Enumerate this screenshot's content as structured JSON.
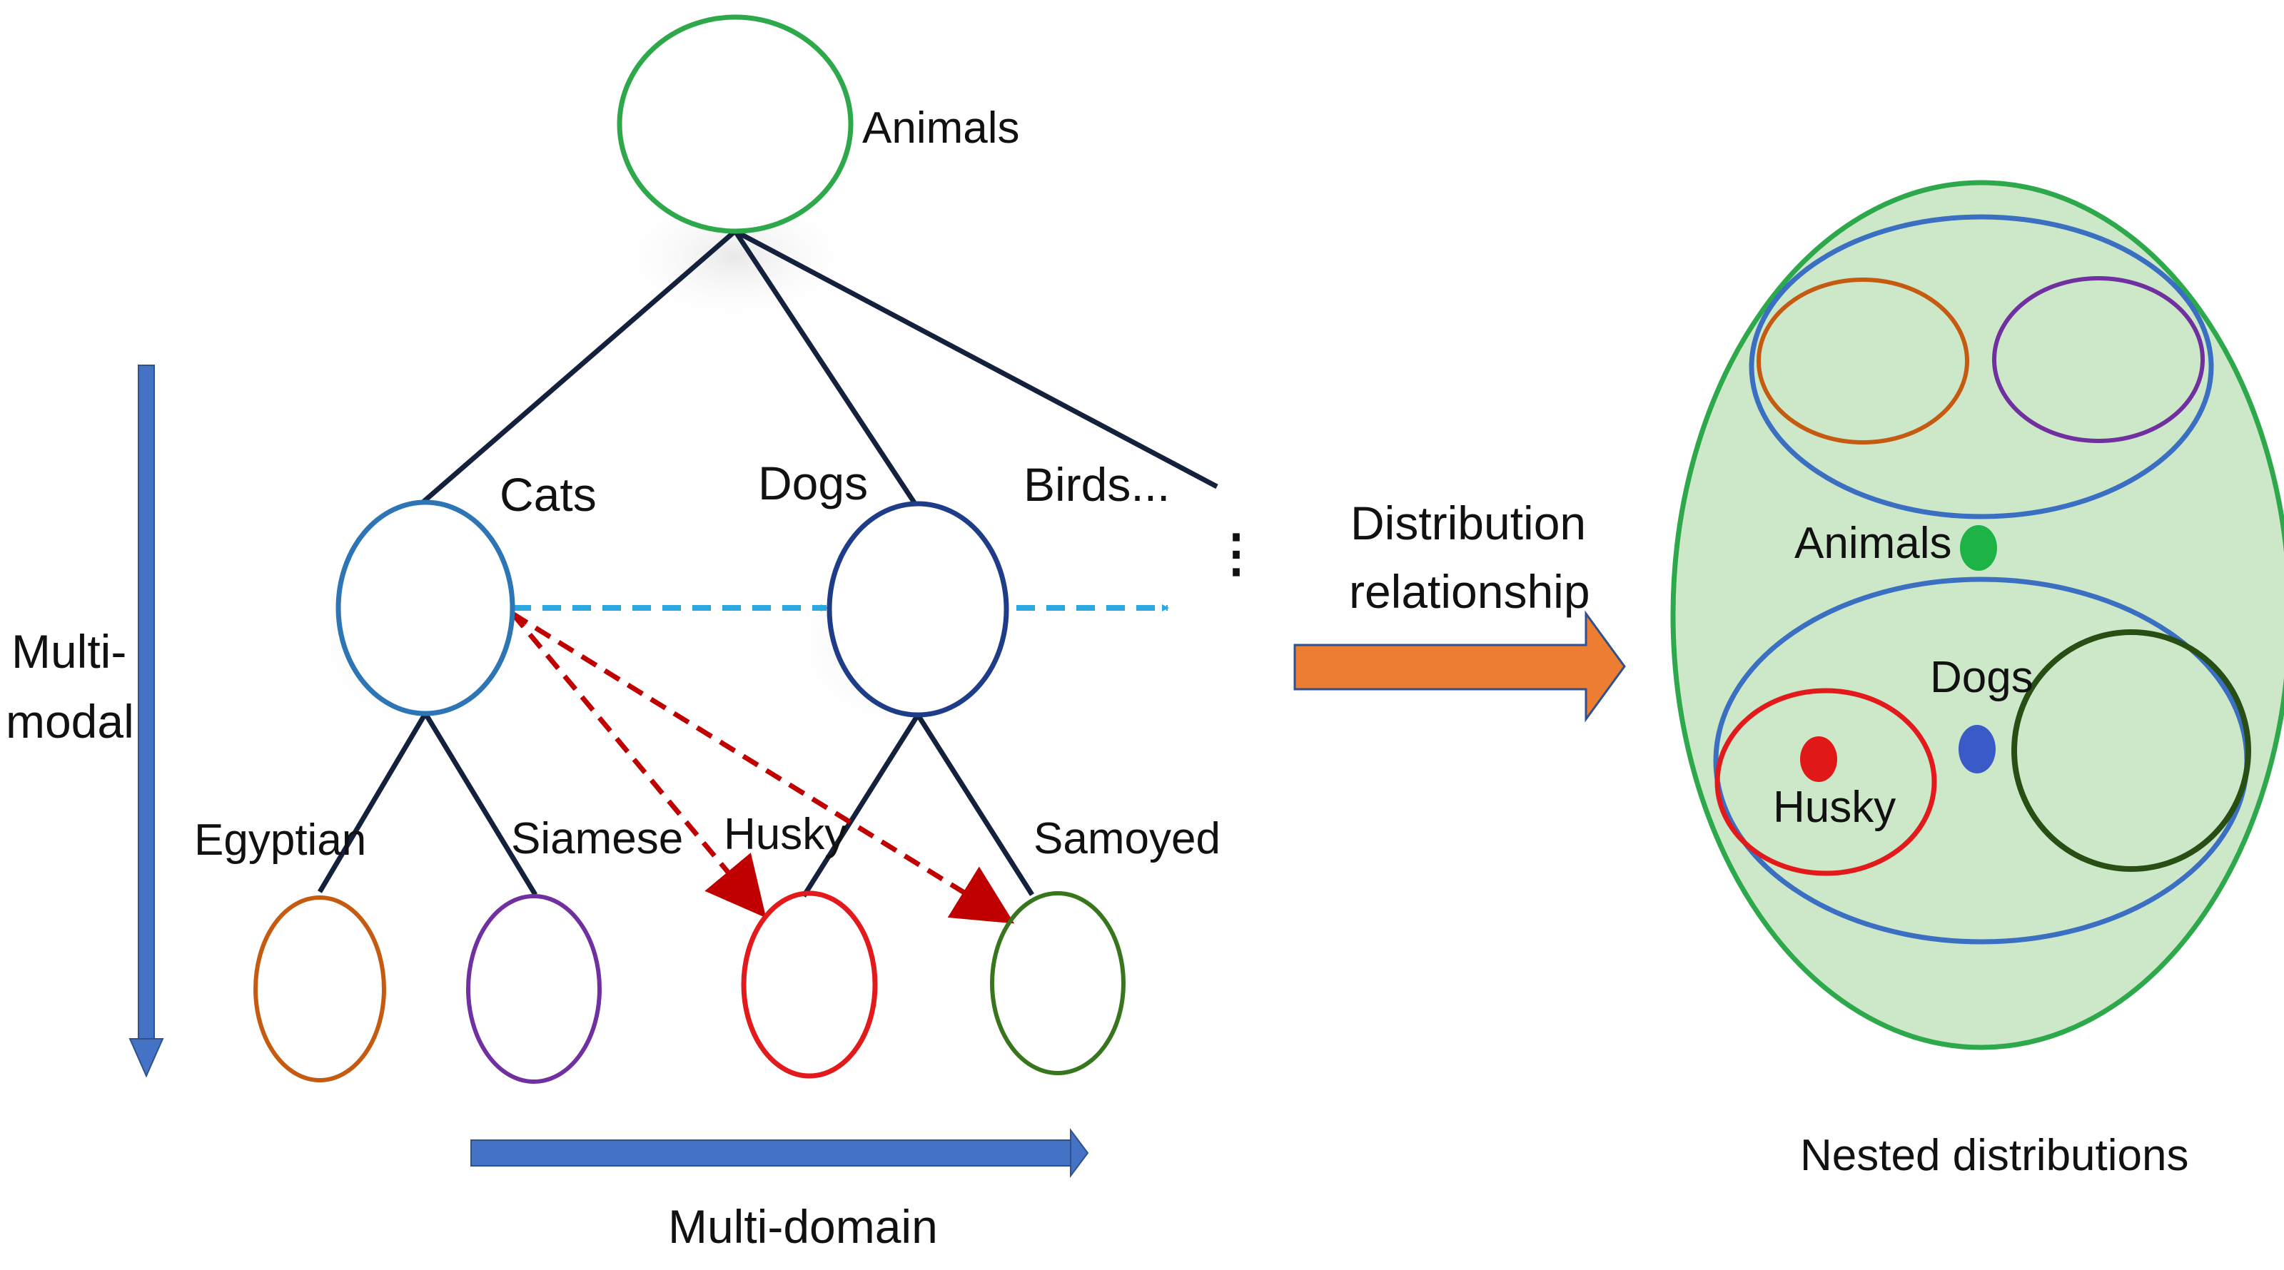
{
  "tree": {
    "root": {
      "label": "Animals"
    },
    "categories": [
      {
        "label": "Cats"
      },
      {
        "label": "Dogs"
      },
      {
        "label": "Birds..."
      }
    ],
    "ellipsis": "⋮",
    "leaves": [
      {
        "label": "Egyptian",
        "border_color": "#C55A11"
      },
      {
        "label": "Siamese",
        "border_color": "#7030A0"
      },
      {
        "label": "Husky",
        "border_color": "#E31A1C"
      },
      {
        "label": "Samoyed",
        "border_color": "#38761D"
      }
    ]
  },
  "axes": {
    "vertical_label_line1": "Multi-",
    "vertical_label_line2": "modal",
    "horizontal_label": "Multi-domain"
  },
  "transition": {
    "line1": "Distribution",
    "line2": "relationship"
  },
  "nested": {
    "caption": "Nested distributions",
    "animals_label": "Animals",
    "dogs_label": "Dogs",
    "husky_label": "Husky"
  },
  "colors": {
    "tree_line": "#14213D",
    "root_border": "#2DA84A",
    "cats_border": "#2E75B6",
    "dogs_border": "#1F3C88",
    "axis_arrow": "#4472C4",
    "cross_domain_arrow": "#2BA8E0",
    "cross_modal_arrow": "#C00000",
    "transition_arrow": "#ED7D31",
    "outer_fill": "#CDE8C9",
    "outer_border": "#2DA84A",
    "group_border": "#3A6FC2",
    "dot_animals": "#1DB347",
    "dot_dogs": "#3A5BC7",
    "dot_husky": "#E01818"
  }
}
